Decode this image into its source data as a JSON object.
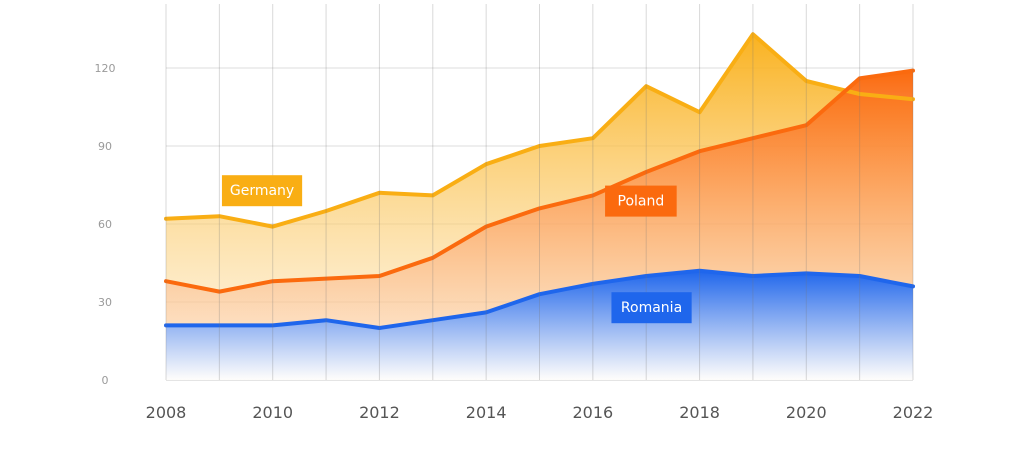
{
  "chart_data": {
    "type": "area",
    "title": "",
    "xlabel": "",
    "ylabel": "",
    "x": [
      2008,
      2009,
      2010,
      2011,
      2012,
      2013,
      2014,
      2015,
      2016,
      2017,
      2018,
      2019,
      2020,
      2021,
      2022
    ],
    "x_tick_labels": [
      "2008",
      "2010",
      "2012",
      "2014",
      "2016",
      "2018",
      "2020",
      "2022"
    ],
    "y_ticks": [
      0,
      30,
      60,
      90,
      120
    ],
    "y_tick_labels": [
      "0",
      "30",
      "60",
      "90",
      "120"
    ],
    "xlim": [
      2008,
      2022
    ],
    "ylim": [
      0,
      140
    ],
    "grid": true,
    "legend": "inline labels",
    "series": [
      {
        "name": "Germany",
        "color": "#F9AE14",
        "values": [
          62,
          63,
          59,
          65,
          72,
          71,
          83,
          90,
          93,
          113,
          103,
          133,
          115,
          110,
          108
        ],
        "label_anchor": {
          "x": 2009.8,
          "y": 73
        }
      },
      {
        "name": "Poland",
        "color": "#FB6A0E",
        "values": [
          38,
          34,
          38,
          39,
          40,
          47,
          59,
          66,
          71,
          80,
          88,
          93,
          98,
          116,
          119
        ],
        "label_anchor": {
          "x": 2016.9,
          "y": 69
        }
      },
      {
        "name": "Romania",
        "color": "#1F66EC",
        "values": [
          21,
          21,
          21,
          23,
          20,
          23,
          26,
          33,
          37,
          40,
          42,
          40,
          41,
          40,
          36
        ],
        "label_anchor": {
          "x": 2017.1,
          "y": 28
        }
      }
    ]
  }
}
